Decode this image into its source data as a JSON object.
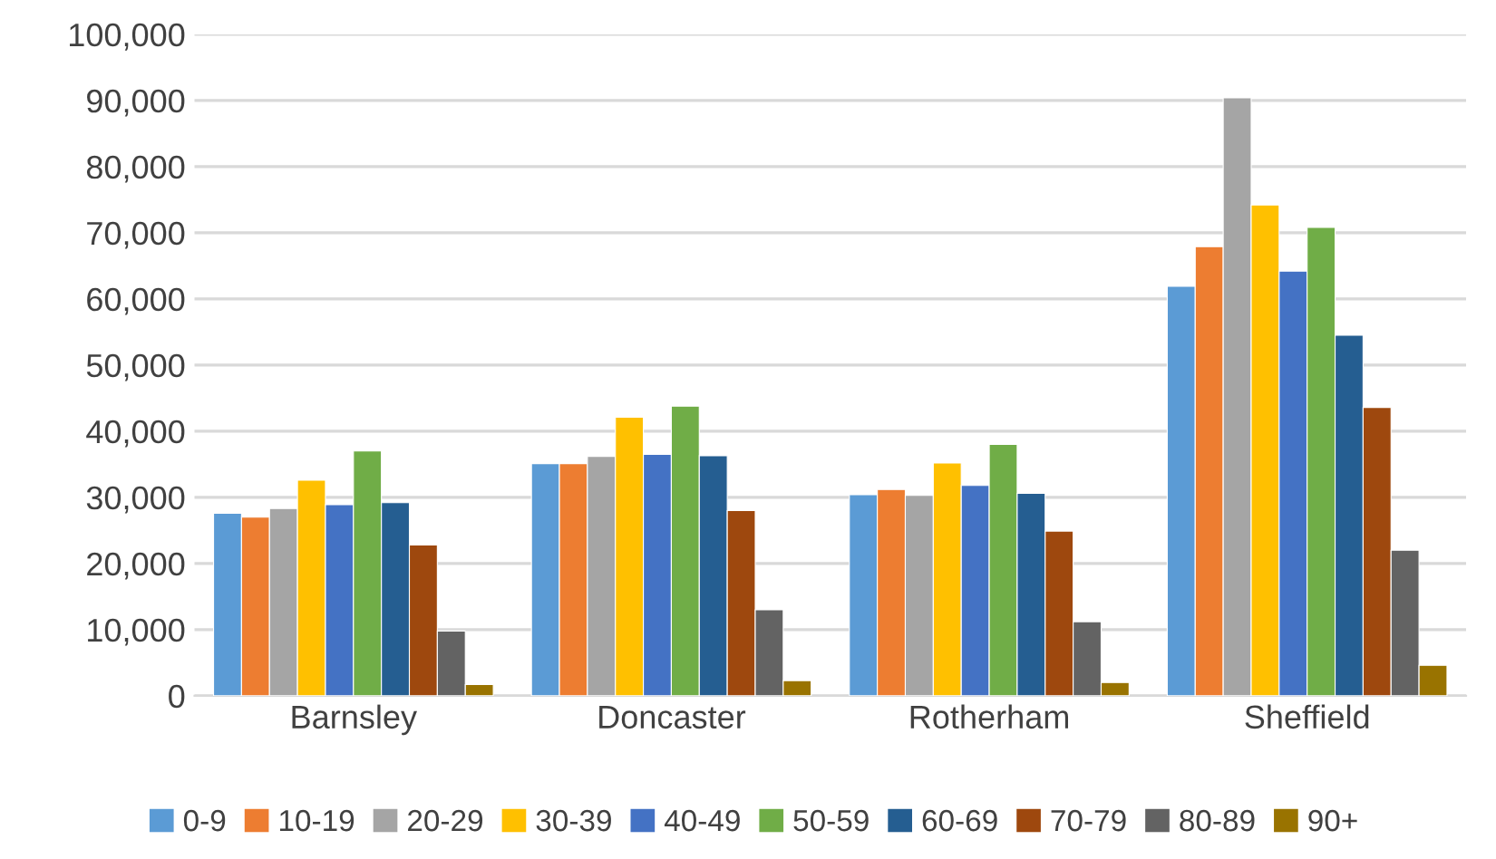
{
  "chart_data": {
    "type": "bar",
    "categories": [
      "Barnsley",
      "Doncaster",
      "Rotherham",
      "Sheffield"
    ],
    "series": [
      {
        "name": "0-9",
        "color": "#5b9bd5",
        "values": [
          27600,
          35100,
          30400,
          61900
        ]
      },
      {
        "name": "10-19",
        "color": "#ed7d31",
        "values": [
          27000,
          35100,
          31200,
          67900
        ]
      },
      {
        "name": "20-29",
        "color": "#a5a5a5",
        "values": [
          28300,
          36200,
          30300,
          90400
        ]
      },
      {
        "name": "30-39",
        "color": "#ffc000",
        "values": [
          32600,
          42100,
          35200,
          74200
        ]
      },
      {
        "name": "40-49",
        "color": "#4472c4",
        "values": [
          28900,
          36500,
          31800,
          64200
        ]
      },
      {
        "name": "50-59",
        "color": "#70ad47",
        "values": [
          37000,
          43800,
          38000,
          70800
        ]
      },
      {
        "name": "60-69",
        "color": "#255e91",
        "values": [
          29200,
          36300,
          30600,
          54500
        ]
      },
      {
        "name": "70-79",
        "color": "#9e480e",
        "values": [
          22800,
          28000,
          24900,
          43600
        ]
      },
      {
        "name": "80-89",
        "color": "#636363",
        "values": [
          9800,
          13000,
          11200,
          22000
        ]
      },
      {
        "name": "90+",
        "color": "#997300",
        "values": [
          1700,
          2300,
          2000,
          4600
        ]
      }
    ],
    "ylim": [
      0,
      100000
    ],
    "yticks": [
      {
        "value": 0,
        "label": "0"
      },
      {
        "value": 10000,
        "label": "10,000"
      },
      {
        "value": 20000,
        "label": "20,000"
      },
      {
        "value": 30000,
        "label": "30,000"
      },
      {
        "value": 40000,
        "label": "40,000"
      },
      {
        "value": 50000,
        "label": "50,000"
      },
      {
        "value": 60000,
        "label": "60,000"
      },
      {
        "value": 70000,
        "label": "70,000"
      },
      {
        "value": 80000,
        "label": "80,000"
      },
      {
        "value": 90000,
        "label": "90,000"
      },
      {
        "value": 100000,
        "label": "100,000"
      }
    ],
    "grid": "y",
    "legend": "bottom"
  }
}
